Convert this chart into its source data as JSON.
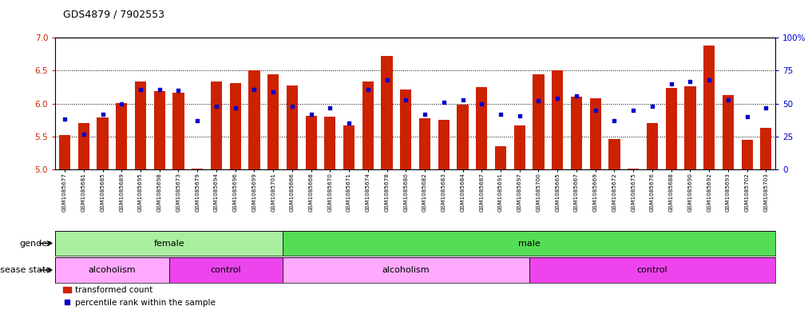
{
  "title": "GDS4879 / 7902553",
  "samples": [
    "GSM1085677",
    "GSM1085681",
    "GSM1085685",
    "GSM1085689",
    "GSM1085695",
    "GSM1085698",
    "GSM1085673",
    "GSM1085679",
    "GSM1085694",
    "GSM1085696",
    "GSM1085699",
    "GSM1085701",
    "GSM1085666",
    "GSM1085668",
    "GSM1085670",
    "GSM1085671",
    "GSM1085674",
    "GSM1085678",
    "GSM1085680",
    "GSM1085682",
    "GSM1085683",
    "GSM1085684",
    "GSM1085687",
    "GSM1085691",
    "GSM1085697",
    "GSM1085700",
    "GSM1085665",
    "GSM1085667",
    "GSM1085669",
    "GSM1085672",
    "GSM1085675",
    "GSM1085676",
    "GSM1085688",
    "GSM1085690",
    "GSM1085692",
    "GSM1085693",
    "GSM1085702",
    "GSM1085703"
  ],
  "bar_values": [
    5.52,
    5.7,
    5.79,
    6.01,
    6.34,
    6.19,
    6.17,
    5.02,
    6.34,
    6.31,
    6.5,
    6.44,
    6.28,
    5.82,
    5.8,
    5.67,
    6.34,
    6.72,
    6.21,
    5.78,
    5.75,
    5.99,
    6.25,
    5.36,
    5.67,
    6.45,
    6.5,
    6.11,
    6.08,
    5.46,
    5.01,
    5.71,
    6.24,
    6.26,
    6.88,
    6.13,
    5.45,
    5.63
  ],
  "percentile_values": [
    38,
    27,
    42,
    50,
    61,
    61,
    60,
    37,
    48,
    47,
    61,
    59,
    48,
    42,
    47,
    35,
    61,
    68,
    53,
    42,
    51,
    53,
    50,
    42,
    41,
    52,
    54,
    56,
    45,
    37,
    45,
    48,
    65,
    67,
    68,
    53,
    40,
    47
  ],
  "ylim_left": [
    5.0,
    7.0
  ],
  "ylim_right": [
    0,
    100
  ],
  "yticks_left": [
    5.0,
    5.5,
    6.0,
    6.5,
    7.0
  ],
  "yticks_right": [
    0,
    25,
    50,
    75,
    100
  ],
  "bar_color": "#CC2200",
  "dot_color": "#0000CC",
  "gender_regions": [
    {
      "label": "female",
      "start": 0,
      "end": 12,
      "color": "#AAEEA0"
    },
    {
      "label": "male",
      "start": 12,
      "end": 38,
      "color": "#55DD55"
    }
  ],
  "disease_regions": [
    {
      "label": "alcoholism",
      "start": 0,
      "end": 6,
      "color": "#FFAAFF"
    },
    {
      "label": "control",
      "start": 6,
      "end": 12,
      "color": "#EE44EE"
    },
    {
      "label": "alcoholism",
      "start": 12,
      "end": 25,
      "color": "#FFAAFF"
    },
    {
      "label": "control",
      "start": 25,
      "end": 38,
      "color": "#EE44EE"
    }
  ],
  "gender_label": "gender",
  "disease_label": "disease state",
  "legend_bar": "transformed count",
  "legend_dot": "percentile rank within the sample"
}
